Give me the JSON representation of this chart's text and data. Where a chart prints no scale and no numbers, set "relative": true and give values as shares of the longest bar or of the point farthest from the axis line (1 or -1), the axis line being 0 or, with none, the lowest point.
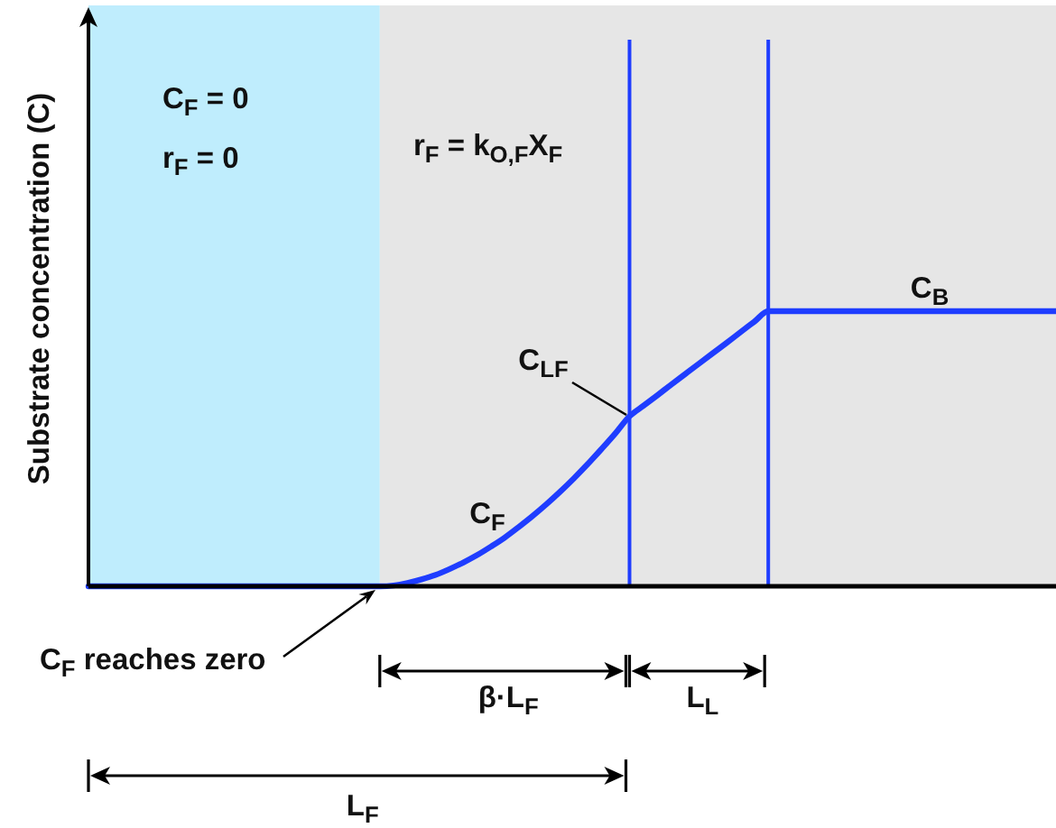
{
  "chart_data": {
    "type": "line",
    "ylabel": "Substrate concentration (C)",
    "relative": true,
    "line_style": "solid",
    "categories": [
      null,
      null,
      null,
      null,
      null,
      null,
      null,
      null,
      null,
      null,
      null,
      null,
      null,
      null,
      null,
      null,
      null,
      null,
      null,
      null,
      null,
      null,
      null,
      null,
      null,
      null,
      null,
      null,
      null,
      null,
      null,
      null,
      null,
      null,
      null,
      null,
      null,
      null,
      null,
      null,
      null,
      null,
      null,
      null,
      null,
      null,
      null,
      null,
      null,
      null,
      null,
      null,
      null,
      null,
      null,
      null,
      null,
      null,
      null,
      null,
      null,
      null,
      null,
      null,
      null,
      null,
      null,
      null,
      null,
      null,
      null
    ],
    "series": [
      {
        "color": "#1f3dff",
        "values": [
          0,
          0,
          0,
          0,
          0,
          0,
          0,
          0,
          0,
          0,
          0,
          0,
          0,
          0,
          0,
          0,
          0,
          0,
          0,
          0,
          0,
          0,
          0.003,
          0.012,
          0.025,
          0.041,
          0.062,
          0.086,
          0.113,
          0.144,
          0.177,
          0.215,
          0.255,
          0.298,
          0.344,
          0.393,
          0.445,
          0.5,
          0.557,
          0.618,
          0.656,
          0.694,
          0.733,
          0.771,
          0.809,
          0.847,
          0.885,
          0.924,
          0.962,
          1,
          1,
          1,
          1,
          1,
          1,
          1,
          1,
          1,
          1,
          1,
          1,
          1,
          1,
          1,
          1,
          1,
          1,
          1,
          1,
          1,
          1
        ]
      }
    ],
    "annotations": [
      "C$_{F}$ = 0",
      "r$_{F}$ = 0",
      "r$_{F}$ = k$_{O,F}$X$_{F}$",
      "C$_{B}$",
      "C$_{LF}$",
      "C$_{F}$",
      "C$_{F}$ reaches zero",
      "β·L$_{F}$",
      "L$_{L}$",
      "L$_{F}$"
    ]
  }
}
